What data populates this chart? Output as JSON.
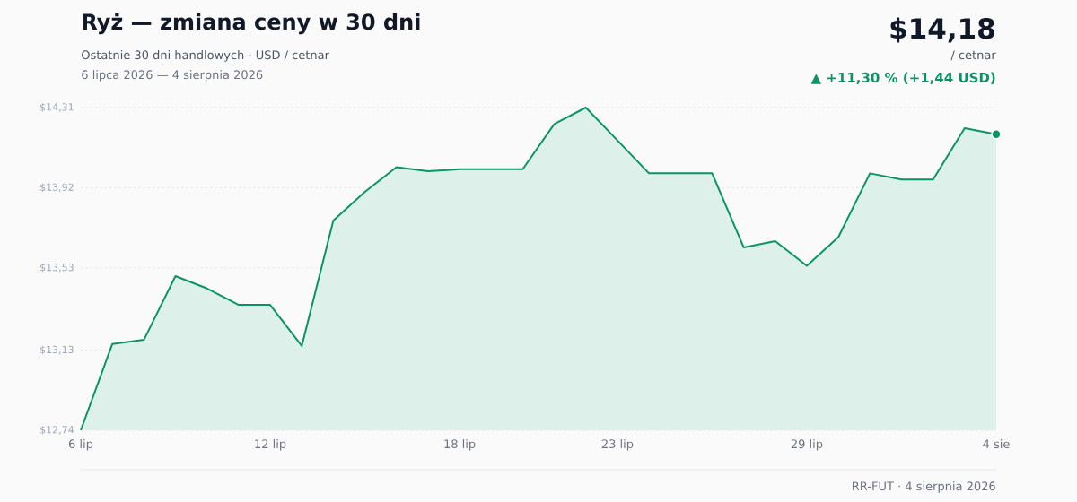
{
  "chart_data": {
    "type": "area",
    "title": "Ryż — zmiana ceny w 30 dni",
    "subtitle": "Ostatnie 30 dni handlowych · USD / cetnar",
    "annotations": [
      "6 lipca 2026 — 4 sierpnia 2026",
      "$14,18",
      "/ cetnar",
      "▲ +11,30 % (+1,44 USD)",
      "RR-FUT · 4 sierpnia 2026"
    ],
    "categories": [
      "6 lip",
      null,
      null,
      null,
      null,
      null,
      "12 lip",
      null,
      null,
      null,
      null,
      null,
      "18 lip",
      null,
      null,
      null,
      null,
      "23 lip",
      null,
      null,
      null,
      null,
      null,
      "29 lip",
      null,
      null,
      null,
      null,
      null,
      "4 sie"
    ],
    "series": [
      {
        "color": "#0a9466",
        "marker": "none",
        "values": [
          12.74,
          13.16,
          13.18,
          13.49,
          13.43,
          13.35,
          13.35,
          13.15,
          13.76,
          13.9,
          14.02,
          14.0,
          14.01,
          14.01,
          14.01,
          14.23,
          14.31,
          14.15,
          13.99,
          13.99,
          13.99,
          13.63,
          13.66,
          13.54,
          13.68,
          13.99,
          13.96,
          13.96,
          14.21,
          14.18
        ]
      },
      {
        "type": "scatter",
        "color": "#0a9466",
        "marker": "circle",
        "x": [
          "4 sie"
        ],
        "values": [
          14.18
        ]
      }
    ],
    "ylim": [
      12.74,
      14.31
    ],
    "yticks": [
      {
        "value": 12.74,
        "label": "$12,74"
      },
      {
        "value": 13.13,
        "label": "$13,13"
      },
      {
        "value": 13.53,
        "label": "$13,53"
      },
      {
        "value": 13.92,
        "label": "$13,92"
      },
      {
        "value": 14.31,
        "label": "$14,31"
      }
    ],
    "grid": "y",
    "line_style": "solid"
  }
}
